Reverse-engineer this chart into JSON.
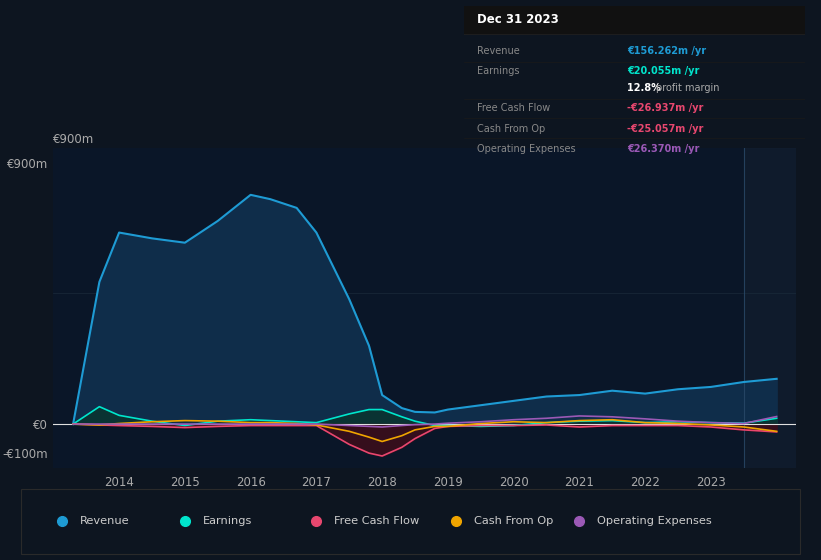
{
  "bg_color": "#0d1520",
  "chart_bg": "#0a1628",
  "header_bg": "#0d1520",
  "years": [
    2013.3,
    2013.7,
    2014.0,
    2014.5,
    2015.0,
    2015.5,
    2016.0,
    2016.3,
    2016.7,
    2017.0,
    2017.5,
    2017.8,
    2018.0,
    2018.3,
    2018.5,
    2018.8,
    2019.0,
    2019.5,
    2020.0,
    2020.5,
    2021.0,
    2021.5,
    2022.0,
    2022.5,
    2023.0,
    2023.5,
    2024.0
  ],
  "revenue": [
    0,
    490,
    660,
    640,
    625,
    700,
    790,
    775,
    745,
    660,
    430,
    270,
    100,
    55,
    42,
    40,
    50,
    65,
    80,
    95,
    100,
    115,
    105,
    120,
    128,
    145,
    156
  ],
  "earnings": [
    0,
    60,
    30,
    10,
    -5,
    10,
    15,
    12,
    8,
    5,
    35,
    50,
    50,
    25,
    10,
    -5,
    -5,
    -8,
    -5,
    5,
    10,
    12,
    5,
    8,
    5,
    3,
    20
  ],
  "free_cash_flow": [
    0,
    -3,
    -5,
    -8,
    -12,
    -8,
    -5,
    -5,
    -5,
    -5,
    -70,
    -100,
    -110,
    -80,
    -50,
    -15,
    -8,
    -5,
    -5,
    -3,
    -10,
    -5,
    -5,
    -5,
    -10,
    -20,
    -27
  ],
  "cash_from_op": [
    0,
    -3,
    2,
    8,
    12,
    10,
    5,
    5,
    2,
    -3,
    -25,
    -45,
    -60,
    -40,
    -20,
    -8,
    -8,
    2,
    8,
    5,
    12,
    15,
    5,
    2,
    -3,
    -10,
    -25
  ],
  "operating_expenses": [
    0,
    0,
    0,
    0,
    0,
    0,
    0,
    0,
    0,
    0,
    -5,
    -8,
    -10,
    -5,
    -2,
    0,
    3,
    8,
    15,
    20,
    28,
    25,
    18,
    10,
    5,
    2,
    26
  ],
  "revenue_color": "#1e9bd4",
  "earnings_color": "#00e5cc",
  "free_cash_flow_color": "#e8476f",
  "cash_from_op_color": "#f0a500",
  "operating_expenses_color": "#9b59b6",
  "revenue_fill": "#0f2d4a",
  "earnings_fill_pos": "#0a3530",
  "earnings_fill_neg": "#1a2010",
  "fcf_fill": "#3d0d1a",
  "ylim_min": -150,
  "ylim_max": 950,
  "xlim_min": 2013.0,
  "xlim_max": 2024.3,
  "ytick_vals": [
    -100,
    0,
    900
  ],
  "ytick_labels": [
    "-€100m",
    "€0",
    "€900m"
  ],
  "xtick_vals": [
    2014,
    2015,
    2016,
    2017,
    2018,
    2019,
    2020,
    2021,
    2022,
    2023
  ],
  "xtick_labels": [
    "2014",
    "2015",
    "2016",
    "2017",
    "2018",
    "2019",
    "2020",
    "2021",
    "2022",
    "2023"
  ],
  "vline_x": 2023.5,
  "grid_color": "#1a2a3a",
  "zero_line_color": "#e0e0e0",
  "tooltip_date": "Dec 31 2023",
  "tooltip_rows": [
    {
      "label": "Revenue",
      "value": "€156.262m /yr",
      "label_color": "#888888",
      "value_color": "#1e9bd4",
      "divider": true
    },
    {
      "label": "Earnings",
      "value": "€20.055m /yr",
      "label_color": "#888888",
      "value_color": "#00e5cc",
      "divider": false
    },
    {
      "label": "",
      "value": "12.8% profit margin",
      "label_color": "#888888",
      "value_color": "#ffffff",
      "divider": true
    },
    {
      "label": "Free Cash Flow",
      "value": "-€26.937m /yr",
      "label_color": "#888888",
      "value_color": "#e8476f",
      "divider": true
    },
    {
      "label": "Cash From Op",
      "value": "-€25.057m /yr",
      "label_color": "#888888",
      "value_color": "#e8476f",
      "divider": true
    },
    {
      "label": "Operating Expenses",
      "value": "€26.370m /yr",
      "label_color": "#888888",
      "value_color": "#9b59b6",
      "divider": false
    }
  ],
  "legend_entries": [
    {
      "label": "Revenue",
      "color": "#1e9bd4"
    },
    {
      "label": "Earnings",
      "color": "#00e5cc"
    },
    {
      "label": "Free Cash Flow",
      "color": "#e8476f"
    },
    {
      "label": "Cash From Op",
      "color": "#f0a500"
    },
    {
      "label": "Operating Expenses",
      "color": "#9b59b6"
    }
  ]
}
